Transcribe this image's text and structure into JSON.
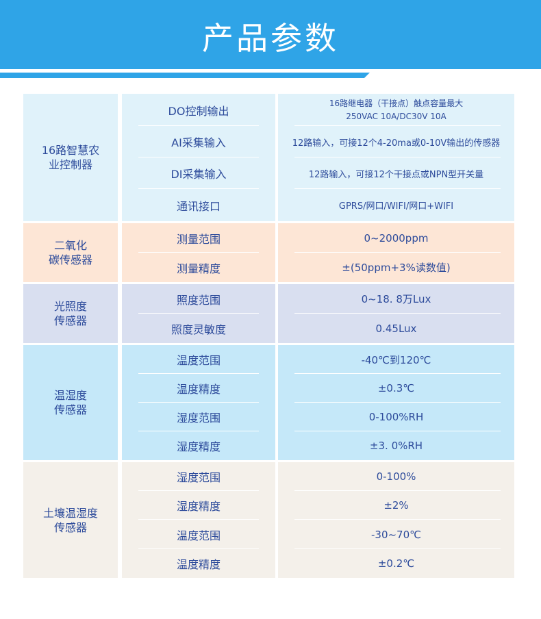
{
  "title": "产品参数",
  "colors": {
    "header": "#2fa4e7",
    "text": "#2d4b9b"
  },
  "sections": [
    {
      "name": "16路智慧农业控制器",
      "bg": "#e0f2fa",
      "rows": [
        {
          "param": "DO控制输出",
          "value": "16路继电器（干接点）触点容量最大",
          "value2": "250VAC 10A/DC30V 10A"
        },
        {
          "param": "AI采集输入",
          "value": "12路输入，可接12个4-20ma或0-10V输出的传感器"
        },
        {
          "param": "DI采集输入",
          "value": "12路输入，可接12个干接点或NPN型开关量"
        },
        {
          "param": "通讯接口",
          "value": "GPRS/网口/WIFI/网口+WIFI"
        }
      ]
    },
    {
      "name": "二氧化碳传感器",
      "bg": "#fde6d6",
      "rows": [
        {
          "param": "测量范围",
          "value": "0~2000ppm"
        },
        {
          "param": "测量精度",
          "value": "±(50ppm+3%读数值)"
        }
      ]
    },
    {
      "name": "光照度传感器",
      "bg": "#d9dff0",
      "rows": [
        {
          "param": "照度范围",
          "value": "0~18. 8万Lux"
        },
        {
          "param": "照度灵敏度",
          "value": "0.45Lux"
        }
      ]
    },
    {
      "name": "温湿度传感器",
      "bg": "#c5e8f9",
      "rows": [
        {
          "param": "温度范围",
          "value": "-40℃到120℃"
        },
        {
          "param": "温度精度",
          "value": "±0.3℃"
        },
        {
          "param": "湿度范围",
          "value": "0-100%RH"
        },
        {
          "param": "湿度精度",
          "value": "±3. 0%RH"
        }
      ]
    },
    {
      "name": "土壤温湿度传感器",
      "bg": "#f4f0ea",
      "rows": [
        {
          "param": "湿度范围",
          "value": "0-100%"
        },
        {
          "param": "湿度精度",
          "value": "±2%"
        },
        {
          "param": "温度范围",
          "value": "-30~70℃"
        },
        {
          "param": "温度精度",
          "value": "±0.2℃"
        }
      ]
    }
  ]
}
